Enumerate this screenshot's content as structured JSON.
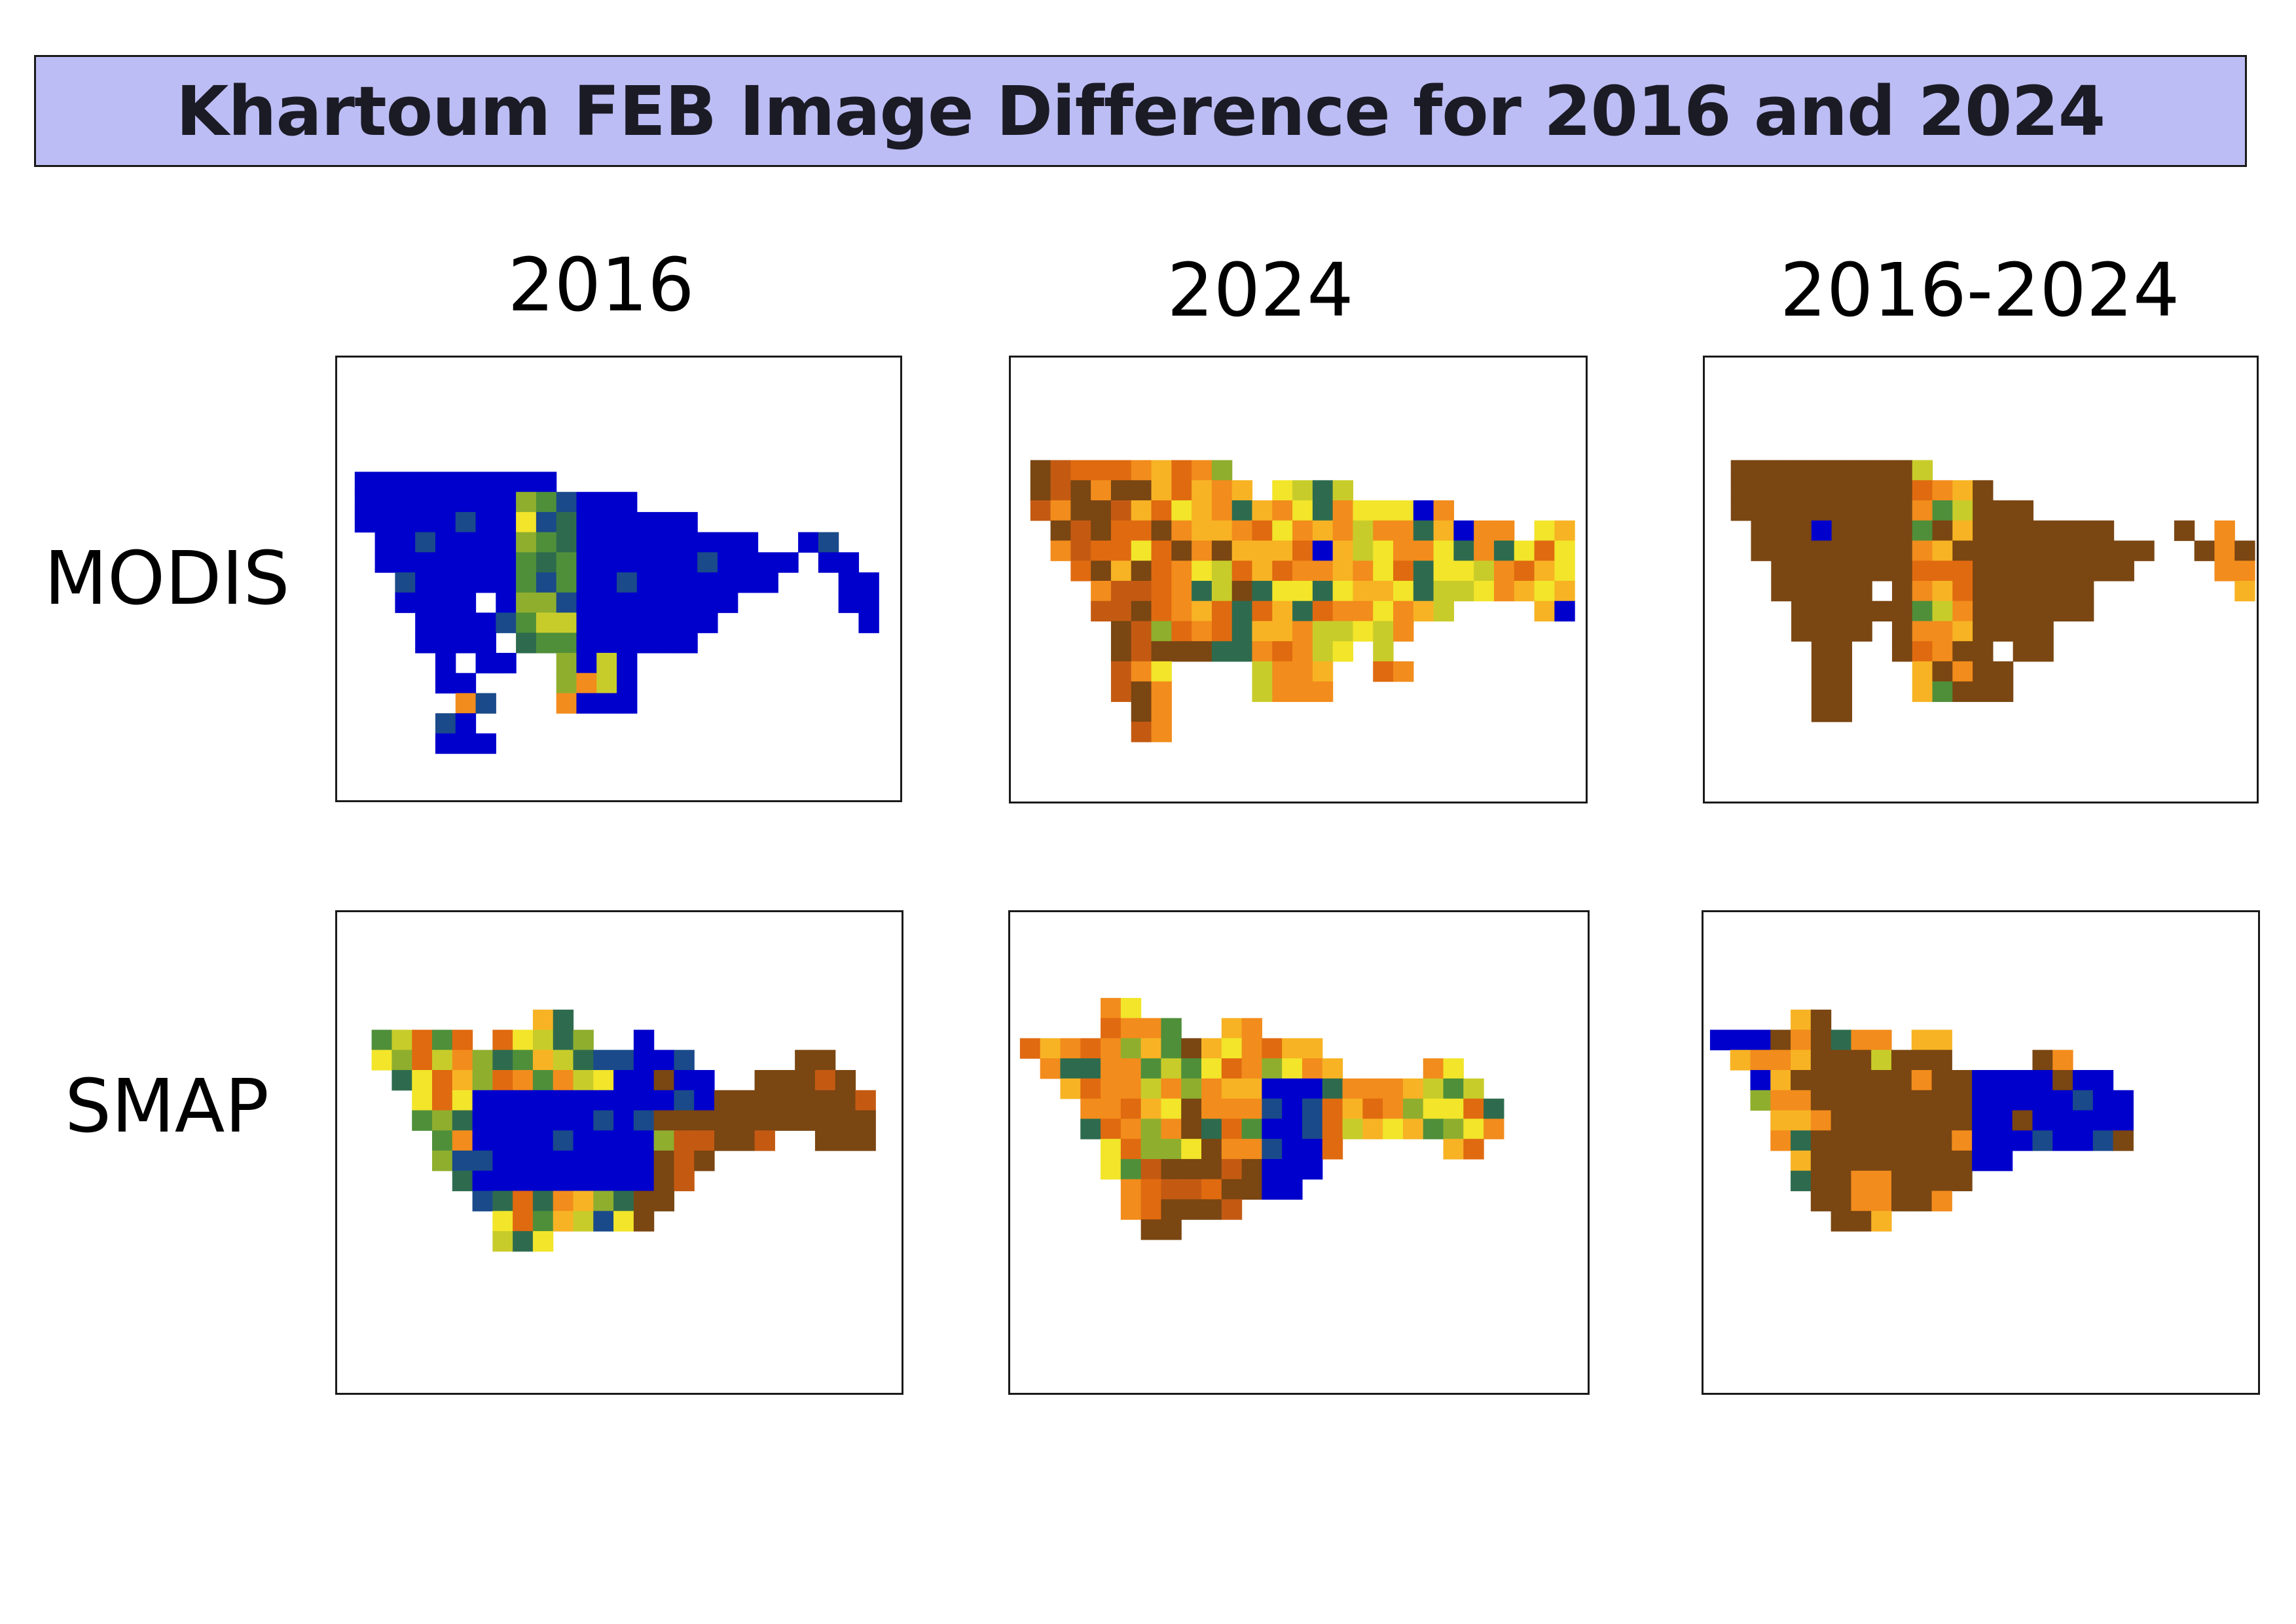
{
  "title": "Khartoum FEB Image Difference for 2016 and 2024",
  "columns": [
    {
      "id": "2016",
      "label": "2016"
    },
    {
      "id": "2024",
      "label": "2024"
    },
    {
      "id": "diff",
      "label": "2016-2024"
    }
  ],
  "rows": [
    {
      "id": "modis",
      "label": "MODIS"
    },
    {
      "id": "smap",
      "label": "SMAP"
    }
  ],
  "colors": {
    "blue": "#0000cc",
    "navy": "#1a4a8a",
    "dark_green": "#2e6b4e",
    "green": "#4f8f3a",
    "olive": "#8fae2e",
    "yellow_green": "#c8cc2a",
    "yellow": "#f2e52a",
    "light_orange": "#f7b324",
    "orange": "#f28c1c",
    "dark_orange": "#e06a10",
    "rust": "#c45a12",
    "brown": "#7a4612"
  }
}
